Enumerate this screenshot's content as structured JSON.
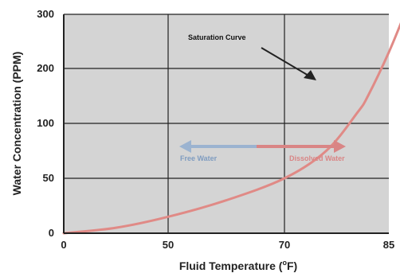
{
  "chart_data": {
    "type": "line",
    "title": "",
    "xlabel_main": "Fluid Temperature (",
    "xlabel_sup": "o",
    "xlabel_tail": "F)",
    "ylabel": "Water Concentration (PPM)",
    "x_ticks": [
      "0",
      "50",
      "70",
      "85"
    ],
    "y_ticks": [
      "0",
      "50",
      "100",
      "200",
      "300"
    ],
    "grid": true,
    "background_color": "#d4d4d4",
    "series": [
      {
        "name": "Saturation Curve",
        "color": "#e08a86",
        "x_ticks_index": [
          0,
          0.5,
          1.0,
          1.5,
          2.0,
          2.4,
          2.7,
          2.8,
          3.0,
          3.15
        ],
        "y_ticks_index": [
          0.0,
          0.1,
          0.3,
          0.6,
          1.0,
          1.5,
          2.2,
          2.5,
          3.3,
          4.0
        ]
      }
    ],
    "annotations": {
      "saturation": "Saturation Curve",
      "free_water": "Free Water",
      "dissolved_water": "Dissolved Water",
      "free_color": "#8fa9c9",
      "dissolved_color": "#d98585",
      "arrow_color": "#222222"
    }
  }
}
